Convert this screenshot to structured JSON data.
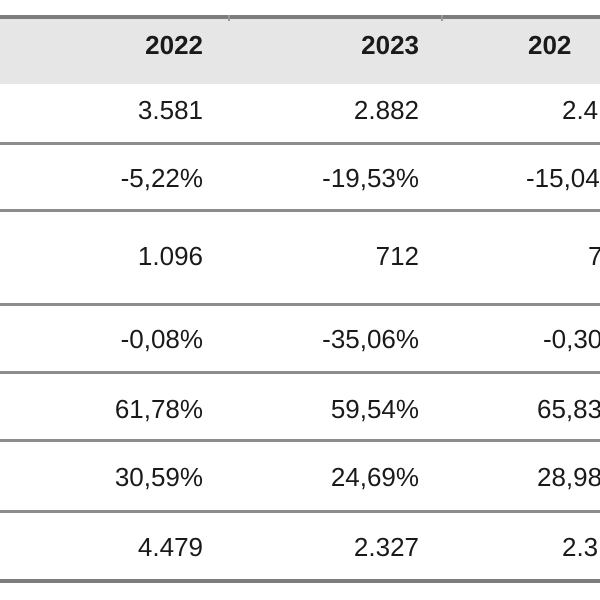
{
  "table": {
    "headers": [
      "2022",
      "2023",
      "202"
    ],
    "rows": [
      [
        "3.581",
        "2.882",
        "2.4"
      ],
      [
        "-5,22%",
        "-19,53%",
        "-15,04"
      ],
      [
        "1.096",
        "712",
        "7"
      ],
      [
        "-0,08%",
        "-35,06%",
        "-0,30"
      ],
      [
        "61,78%",
        "59,54%",
        "65,83"
      ],
      [
        "30,59%",
        "24,69%",
        "28,98"
      ],
      [
        "4.479",
        "2.327",
        "2.3"
      ]
    ]
  },
  "colors": {
    "header_bg": "#e6e6e6",
    "rule": "#8c8c8c",
    "text": "#1a1a1a"
  }
}
